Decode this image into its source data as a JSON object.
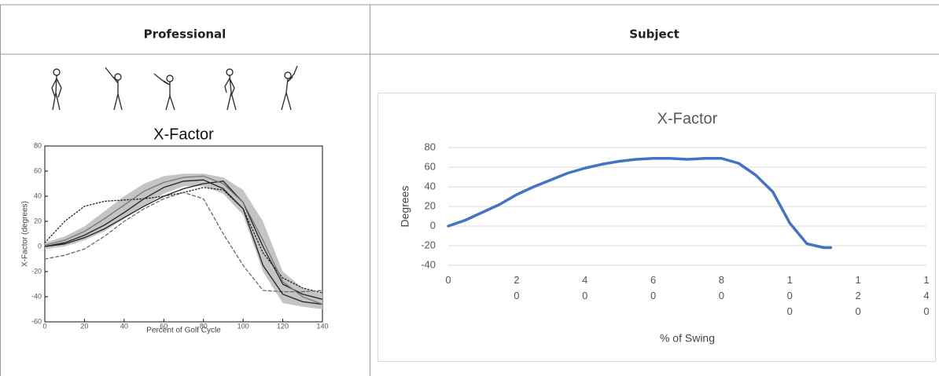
{
  "table": {
    "headers": [
      "Professional",
      "Subject"
    ]
  },
  "chart_data": [
    {
      "type": "line",
      "title": "X-Factor",
      "x_label": "Percent of Golf Cycle",
      "y_label": "X-Factor (degrees)",
      "xlim": [
        0,
        140
      ],
      "ylim": [
        -60,
        80
      ],
      "xticks": [
        0,
        20,
        40,
        60,
        80,
        100,
        120,
        140
      ],
      "yticks": [
        -60,
        -40,
        -20,
        0,
        20,
        40,
        60,
        80
      ],
      "frame": true,
      "grid": false,
      "x": [
        0,
        10,
        20,
        30,
        40,
        50,
        60,
        70,
        80,
        90,
        100,
        110,
        120,
        130,
        140
      ],
      "band": {
        "color": "#c4c4c4",
        "upper": [
          3,
          8,
          16,
          28,
          40,
          50,
          56,
          58,
          58,
          55,
          45,
          20,
          -20,
          -33,
          -38
        ],
        "lower": [
          -2,
          0,
          5,
          12,
          22,
          32,
          42,
          48,
          48,
          42,
          25,
          -20,
          -45,
          -48,
          -50
        ]
      },
      "series": [
        {
          "color": "#222222",
          "style": "dotted",
          "values": [
            3,
            20,
            32,
            36,
            37,
            38,
            40,
            43,
            47,
            45,
            30,
            -5,
            -25,
            -33,
            -37
          ]
        },
        {
          "color": "#666666",
          "style": "dashed",
          "values": [
            -10,
            -7,
            -2,
            8,
            20,
            30,
            38,
            43,
            38,
            10,
            -15,
            -35,
            -36,
            -36,
            -35
          ]
        },
        {
          "color": "#222222",
          "style": "solid",
          "values": [
            0,
            2,
            7,
            14,
            23,
            32,
            40,
            46,
            50,
            52,
            35,
            0,
            -30,
            -38,
            -42
          ]
        },
        {
          "color": "#222222",
          "style": "solid",
          "values": [
            0,
            3,
            9,
            17,
            27,
            38,
            47,
            52,
            53,
            46,
            30,
            -15,
            -38,
            -44,
            -46
          ]
        },
        {
          "color": "#777777",
          "style": "solid",
          "values": [
            1,
            5,
            12,
            22,
            33,
            44,
            51,
            55,
            56,
            50,
            35,
            5,
            -28,
            -40,
            -46
          ]
        }
      ]
    },
    {
      "type": "line",
      "title": "X-Factor",
      "x_label": "% of Swing",
      "y_label": "Degrees",
      "xlim": [
        0,
        140
      ],
      "ylim": [
        -40,
        80
      ],
      "xticks": [
        0,
        20,
        40,
        60,
        80,
        100,
        120,
        140
      ],
      "yticks": [
        -40,
        -20,
        0,
        20,
        40,
        60,
        80
      ],
      "frame": false,
      "grid": true,
      "x": [
        0,
        5,
        10,
        15,
        20,
        25,
        30,
        35,
        40,
        45,
        50,
        55,
        60,
        65,
        70,
        75,
        80,
        85,
        90,
        95,
        100,
        105,
        110,
        112
      ],
      "series": [
        {
          "color": "#4472c4",
          "style": "solid",
          "values": [
            0,
            6,
            14,
            22,
            32,
            40,
            47,
            54,
            59,
            63,
            66,
            68,
            69,
            69,
            68,
            69,
            69,
            64,
            52,
            35,
            3,
            -18,
            -22,
            -22
          ]
        }
      ]
    }
  ]
}
